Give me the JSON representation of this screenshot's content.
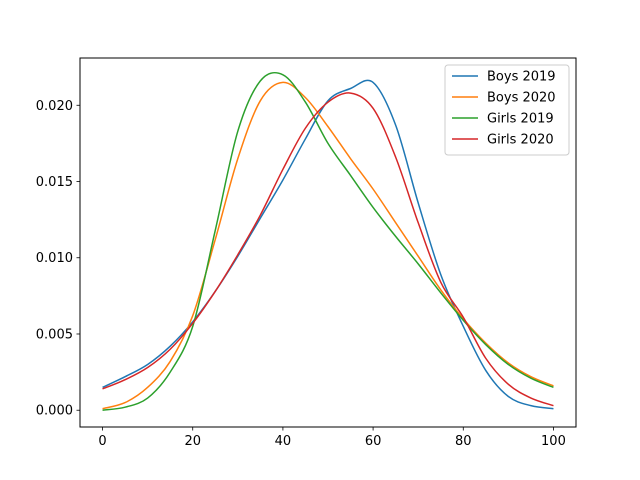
{
  "chart_data": {
    "type": "line",
    "title": "",
    "xlabel": "",
    "ylabel": "",
    "xlim": [
      -5,
      105
    ],
    "ylim": [
      -0.0011,
      0.0231
    ],
    "x_ticks": [
      0,
      20,
      40,
      60,
      80,
      100
    ],
    "x_tick_labels": [
      "0",
      "20",
      "40",
      "60",
      "80",
      "100"
    ],
    "y_ticks": [
      0.0,
      0.005,
      0.01,
      0.015,
      0.02
    ],
    "y_tick_labels": [
      "0.000",
      "0.005",
      "0.010",
      "0.015",
      "0.020"
    ],
    "grid": false,
    "legend_position": "top-right",
    "x": [
      0,
      5,
      10,
      15,
      20,
      25,
      30,
      35,
      40,
      45,
      50,
      55,
      60,
      65,
      70,
      75,
      80,
      85,
      90,
      95,
      100
    ],
    "series": [
      {
        "name": "Boys 2019",
        "color": "#1f77b4",
        "values": [
          0.0015,
          0.0022,
          0.003,
          0.0042,
          0.0058,
          0.0078,
          0.0101,
          0.0126,
          0.0151,
          0.0178,
          0.0203,
          0.0211,
          0.0215,
          0.0187,
          0.0136,
          0.0089,
          0.0055,
          0.0026,
          0.0009,
          0.0003,
          0.0001
        ]
      },
      {
        "name": "Boys 2020",
        "color": "#ff7f0e",
        "values": [
          0.0001,
          0.0005,
          0.0015,
          0.0032,
          0.0062,
          0.0112,
          0.0165,
          0.0203,
          0.0215,
          0.0205,
          0.0186,
          0.0165,
          0.0145,
          0.0123,
          0.0101,
          0.0079,
          0.006,
          0.0044,
          0.0031,
          0.0022,
          0.0016
        ]
      },
      {
        "name": "Girls 2019",
        "color": "#2ca02c",
        "values": [
          0.0,
          0.0002,
          0.0008,
          0.0025,
          0.0055,
          0.0118,
          0.0183,
          0.0216,
          0.022,
          0.0202,
          0.0175,
          0.0154,
          0.0133,
          0.0114,
          0.0096,
          0.0077,
          0.0059,
          0.0043,
          0.003,
          0.0021,
          0.0015
        ]
      },
      {
        "name": "Girls 2020",
        "color": "#d62728",
        "values": [
          0.0014,
          0.002,
          0.0028,
          0.004,
          0.0057,
          0.0078,
          0.0102,
          0.0128,
          0.0158,
          0.0185,
          0.0202,
          0.0208,
          0.0198,
          0.0166,
          0.0123,
          0.0084,
          0.0061,
          0.0034,
          0.0017,
          0.0008,
          0.0003
        ]
      }
    ]
  }
}
